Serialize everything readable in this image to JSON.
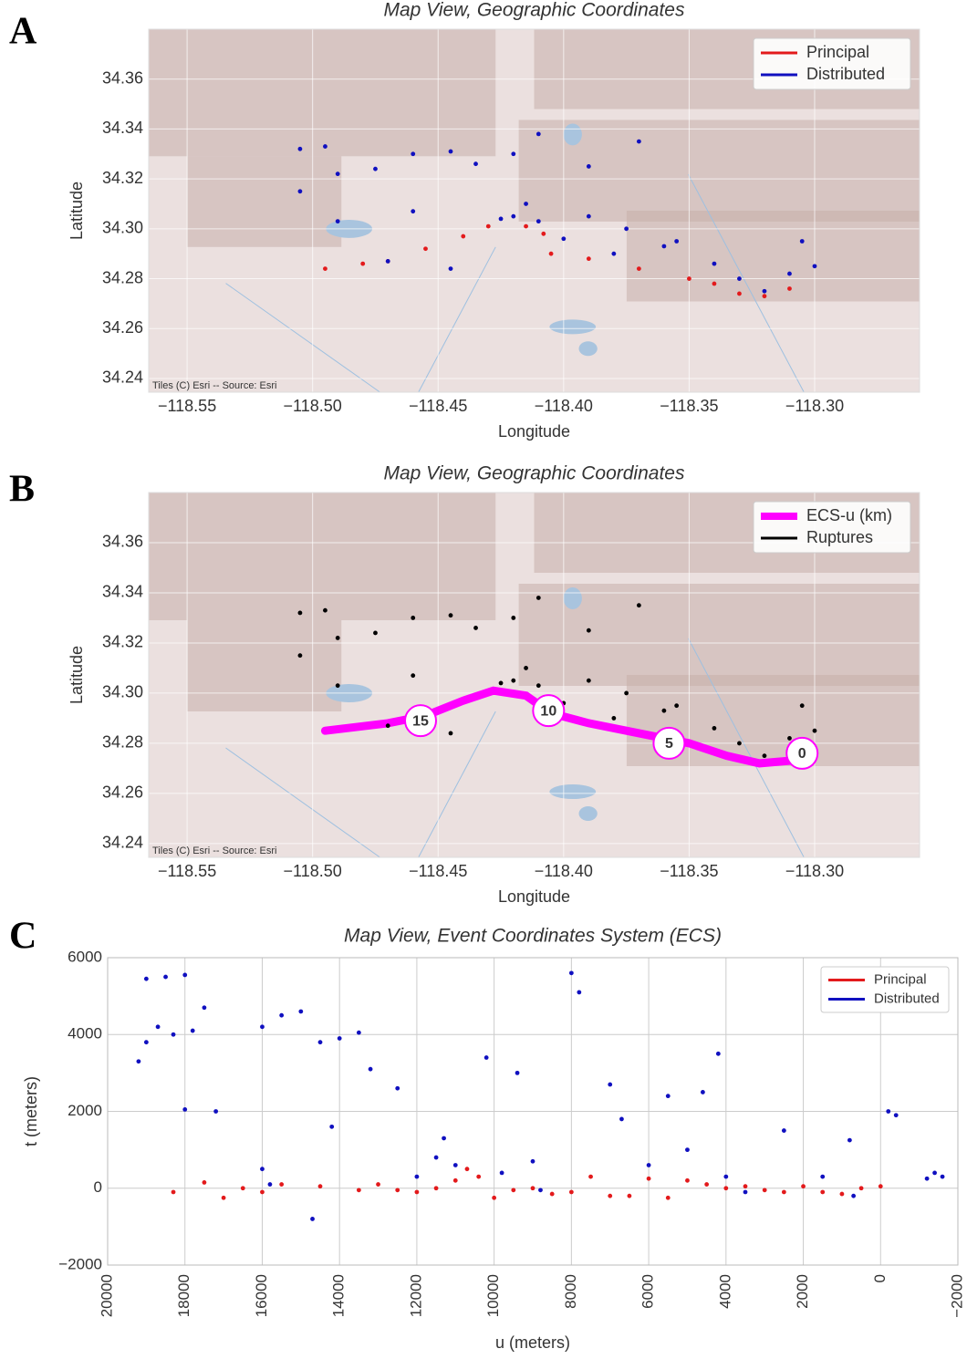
{
  "panel_labels": [
    "A",
    "B",
    "C"
  ],
  "chart_data": [
    {
      "type": "map",
      "title": "Map View, Geographic Coordinates",
      "x_label": "Longitude",
      "y_label": "Latitude",
      "attribution": "Tiles (C) Esri -- Source: Esri",
      "legend": "upper right",
      "grid": true,
      "xlim": [
        -118.5653,
        -118.2582
      ],
      "ylim": [
        34.2345,
        34.38
      ],
      "xticks": [
        {
          "value": -118.55,
          "label": "−118.55"
        },
        {
          "value": -118.5,
          "label": "−118.50"
        },
        {
          "value": -118.45,
          "label": "−118.45"
        },
        {
          "value": -118.4,
          "label": "−118.40"
        },
        {
          "value": -118.35,
          "label": "−118.35"
        },
        {
          "value": -118.3,
          "label": "−118.30"
        }
      ],
      "yticks": [
        34.24,
        34.26,
        34.28,
        {
          "value": 34.3,
          "label": "34.30"
        },
        34.32,
        34.34,
        34.36
      ],
      "series": [
        {
          "name": "Principal",
          "color": "#e31a1c",
          "mode": "line",
          "x": [
            -118.495,
            -118.48,
            -118.47,
            -118.455,
            -118.44,
            -118.43,
            -118.415,
            -118.408,
            -118.405,
            -118.39,
            -118.37,
            -118.35,
            -118.34,
            -118.33,
            -118.32,
            -118.31
          ],
          "values": [
            34.284,
            34.286,
            34.287,
            34.292,
            34.297,
            34.301,
            34.301,
            34.298,
            34.29,
            34.288,
            34.284,
            34.28,
            34.278,
            34.274,
            34.273,
            34.276
          ]
        },
        {
          "name": "Distributed",
          "color": "#1010c0",
          "mode": "line",
          "x": [
            -118.505,
            -118.495,
            -118.505,
            -118.49,
            -118.475,
            -118.46,
            -118.445,
            -118.435,
            -118.42,
            -118.41,
            -118.39,
            -118.37,
            -118.42,
            -118.41,
            -118.415,
            -118.49,
            -118.47,
            -118.445,
            -118.4,
            -118.38,
            -118.36,
            -118.34,
            -118.33,
            -118.32,
            -118.31,
            -118.3,
            -118.305,
            -118.425,
            -118.46,
            -118.39,
            -118.375,
            -118.355
          ],
          "values": [
            34.332,
            34.333,
            34.315,
            34.322,
            34.324,
            34.33,
            34.331,
            34.326,
            34.33,
            34.338,
            34.325,
            34.335,
            34.305,
            34.303,
            34.31,
            34.303,
            34.287,
            34.284,
            34.296,
            34.29,
            34.293,
            34.286,
            34.28,
            34.275,
            34.282,
            34.285,
            34.295,
            34.304,
            34.307,
            34.305,
            34.3,
            34.295
          ]
        }
      ]
    },
    {
      "type": "map",
      "title": "Map View, Geographic Coordinates",
      "x_label": "Longitude",
      "y_label": "Latitude",
      "attribution": "Tiles (C) Esri -- Source: Esri",
      "legend": "upper right",
      "grid": true,
      "xlim": [
        -118.5653,
        -118.2582
      ],
      "ylim": [
        34.2345,
        34.38
      ],
      "xticks": [
        {
          "value": -118.55,
          "label": "−118.55"
        },
        {
          "value": -118.5,
          "label": "−118.50"
        },
        {
          "value": -118.45,
          "label": "−118.45"
        },
        {
          "value": -118.4,
          "label": "−118.40"
        },
        {
          "value": -118.35,
          "label": "−118.35"
        },
        {
          "value": -118.3,
          "label": "−118.30"
        }
      ],
      "yticks": [
        34.24,
        34.26,
        34.28,
        {
          "value": 34.3,
          "label": "34.30"
        },
        34.32,
        34.34,
        34.36
      ],
      "series": [
        {
          "name": "ECS-u (km)",
          "color": "#ff00ff",
          "mode": "thick",
          "x": [
            -118.495,
            -118.47,
            -118.455,
            -118.44,
            -118.428,
            -118.415,
            -118.405,
            -118.39,
            -118.37,
            -118.35,
            -118.335,
            -118.322,
            -118.31,
            -118.305
          ],
          "values": [
            34.285,
            34.288,
            34.291,
            34.297,
            34.301,
            34.299,
            34.292,
            34.288,
            34.284,
            34.28,
            34.275,
            34.272,
            34.273,
            34.276
          ]
        },
        {
          "name": "Ruptures",
          "color": "#000000",
          "mode": "line",
          "x": [
            -118.505,
            -118.495,
            -118.505,
            -118.49,
            -118.475,
            -118.46,
            -118.445,
            -118.435,
            -118.42,
            -118.41,
            -118.39,
            -118.37,
            -118.42,
            -118.41,
            -118.415,
            -118.49,
            -118.47,
            -118.445,
            -118.4,
            -118.38,
            -118.36,
            -118.34,
            -118.33,
            -118.32,
            -118.31,
            -118.3,
            -118.305,
            -118.425,
            -118.46,
            -118.39,
            -118.375,
            -118.355
          ],
          "values": [
            34.332,
            34.333,
            34.315,
            34.322,
            34.324,
            34.33,
            34.331,
            34.326,
            34.33,
            34.338,
            34.325,
            34.335,
            34.305,
            34.303,
            34.31,
            34.303,
            34.287,
            34.284,
            34.296,
            34.29,
            34.293,
            34.286,
            34.28,
            34.275,
            34.282,
            34.285,
            34.295,
            34.304,
            34.307,
            34.305,
            34.3,
            34.295
          ]
        }
      ],
      "ecs_markers": {
        "values": [
          15,
          10,
          5,
          0
        ],
        "x": [
          -118.457,
          -118.406,
          -118.358,
          -118.305
        ],
        "y": [
          34.289,
          34.293,
          34.28,
          34.276
        ]
      }
    },
    {
      "type": "scatter",
      "title": "Map View, Event Coordinates System (ECS)",
      "x_label": "u (meters)",
      "y_label": "t (meters)",
      "legend": "upper right",
      "grid": true,
      "xlim": [
        20000,
        -2000
      ],
      "ylim": [
        -2000,
        6000
      ],
      "xticks": [
        20000,
        18000,
        16000,
        14000,
        12000,
        10000,
        8000,
        6000,
        4000,
        2000,
        0,
        {
          "value": -2000,
          "label": "−2000"
        }
      ],
      "yticks": [
        {
          "value": -2000,
          "label": "−2000"
        },
        0,
        2000,
        4000,
        6000
      ],
      "series": [
        {
          "name": "Principal",
          "color": "#e31a1c",
          "mode": "line",
          "x": [
            18300,
            17500,
            17000,
            16500,
            16000,
            15500,
            14500,
            13500,
            13000,
            12500,
            12000,
            11500,
            11000,
            10700,
            10400,
            10000,
            9500,
            9000,
            8500,
            8000,
            7500,
            7000,
            6500,
            6000,
            5500,
            5000,
            4500,
            4000,
            3500,
            3000,
            2500,
            2000,
            1500,
            1000,
            500,
            0
          ],
          "values": [
            -100,
            150,
            -250,
            0,
            -100,
            100,
            50,
            -50,
            100,
            -50,
            -100,
            0,
            200,
            500,
            300,
            -250,
            -50,
            0,
            -150,
            -100,
            300,
            -200,
            -200,
            250,
            -250,
            200,
            100,
            0,
            50,
            -50,
            -100,
            50,
            -100,
            -150,
            0,
            50
          ]
        },
        {
          "name": "Distributed",
          "color": "#1010c0",
          "mode": "line",
          "x": [
            19000,
            18500,
            18000,
            19200,
            19000,
            18700,
            18300,
            17800,
            17500,
            18000,
            17200,
            16000,
            15500,
            15000,
            14500,
            14000,
            13500,
            13200,
            12500,
            14200,
            16000,
            15800,
            14700,
            11500,
            11300,
            11000,
            12000,
            10200,
            9400,
            8000,
            7800,
            7000,
            6700,
            6000,
            5500,
            5000,
            4600,
            4200,
            4000,
            3500,
            2500,
            1500,
            800,
            700,
            -200,
            -400,
            -1400,
            -1600,
            -1200,
            9000,
            8800,
            9800
          ],
          "values": [
            5450,
            5500,
            5550,
            3300,
            3800,
            4200,
            4000,
            4100,
            4700,
            2050,
            2000,
            4200,
            4500,
            4600,
            3800,
            3900,
            4050,
            3100,
            2600,
            1600,
            500,
            100,
            -800,
            800,
            1300,
            600,
            300,
            3400,
            3000,
            5600,
            5100,
            2700,
            1800,
            600,
            2400,
            1000,
            2500,
            3500,
            300,
            -100,
            1500,
            300,
            1250,
            -200,
            2000,
            1900,
            400,
            300,
            250,
            700,
            -50,
            400
          ]
        }
      ]
    }
  ]
}
